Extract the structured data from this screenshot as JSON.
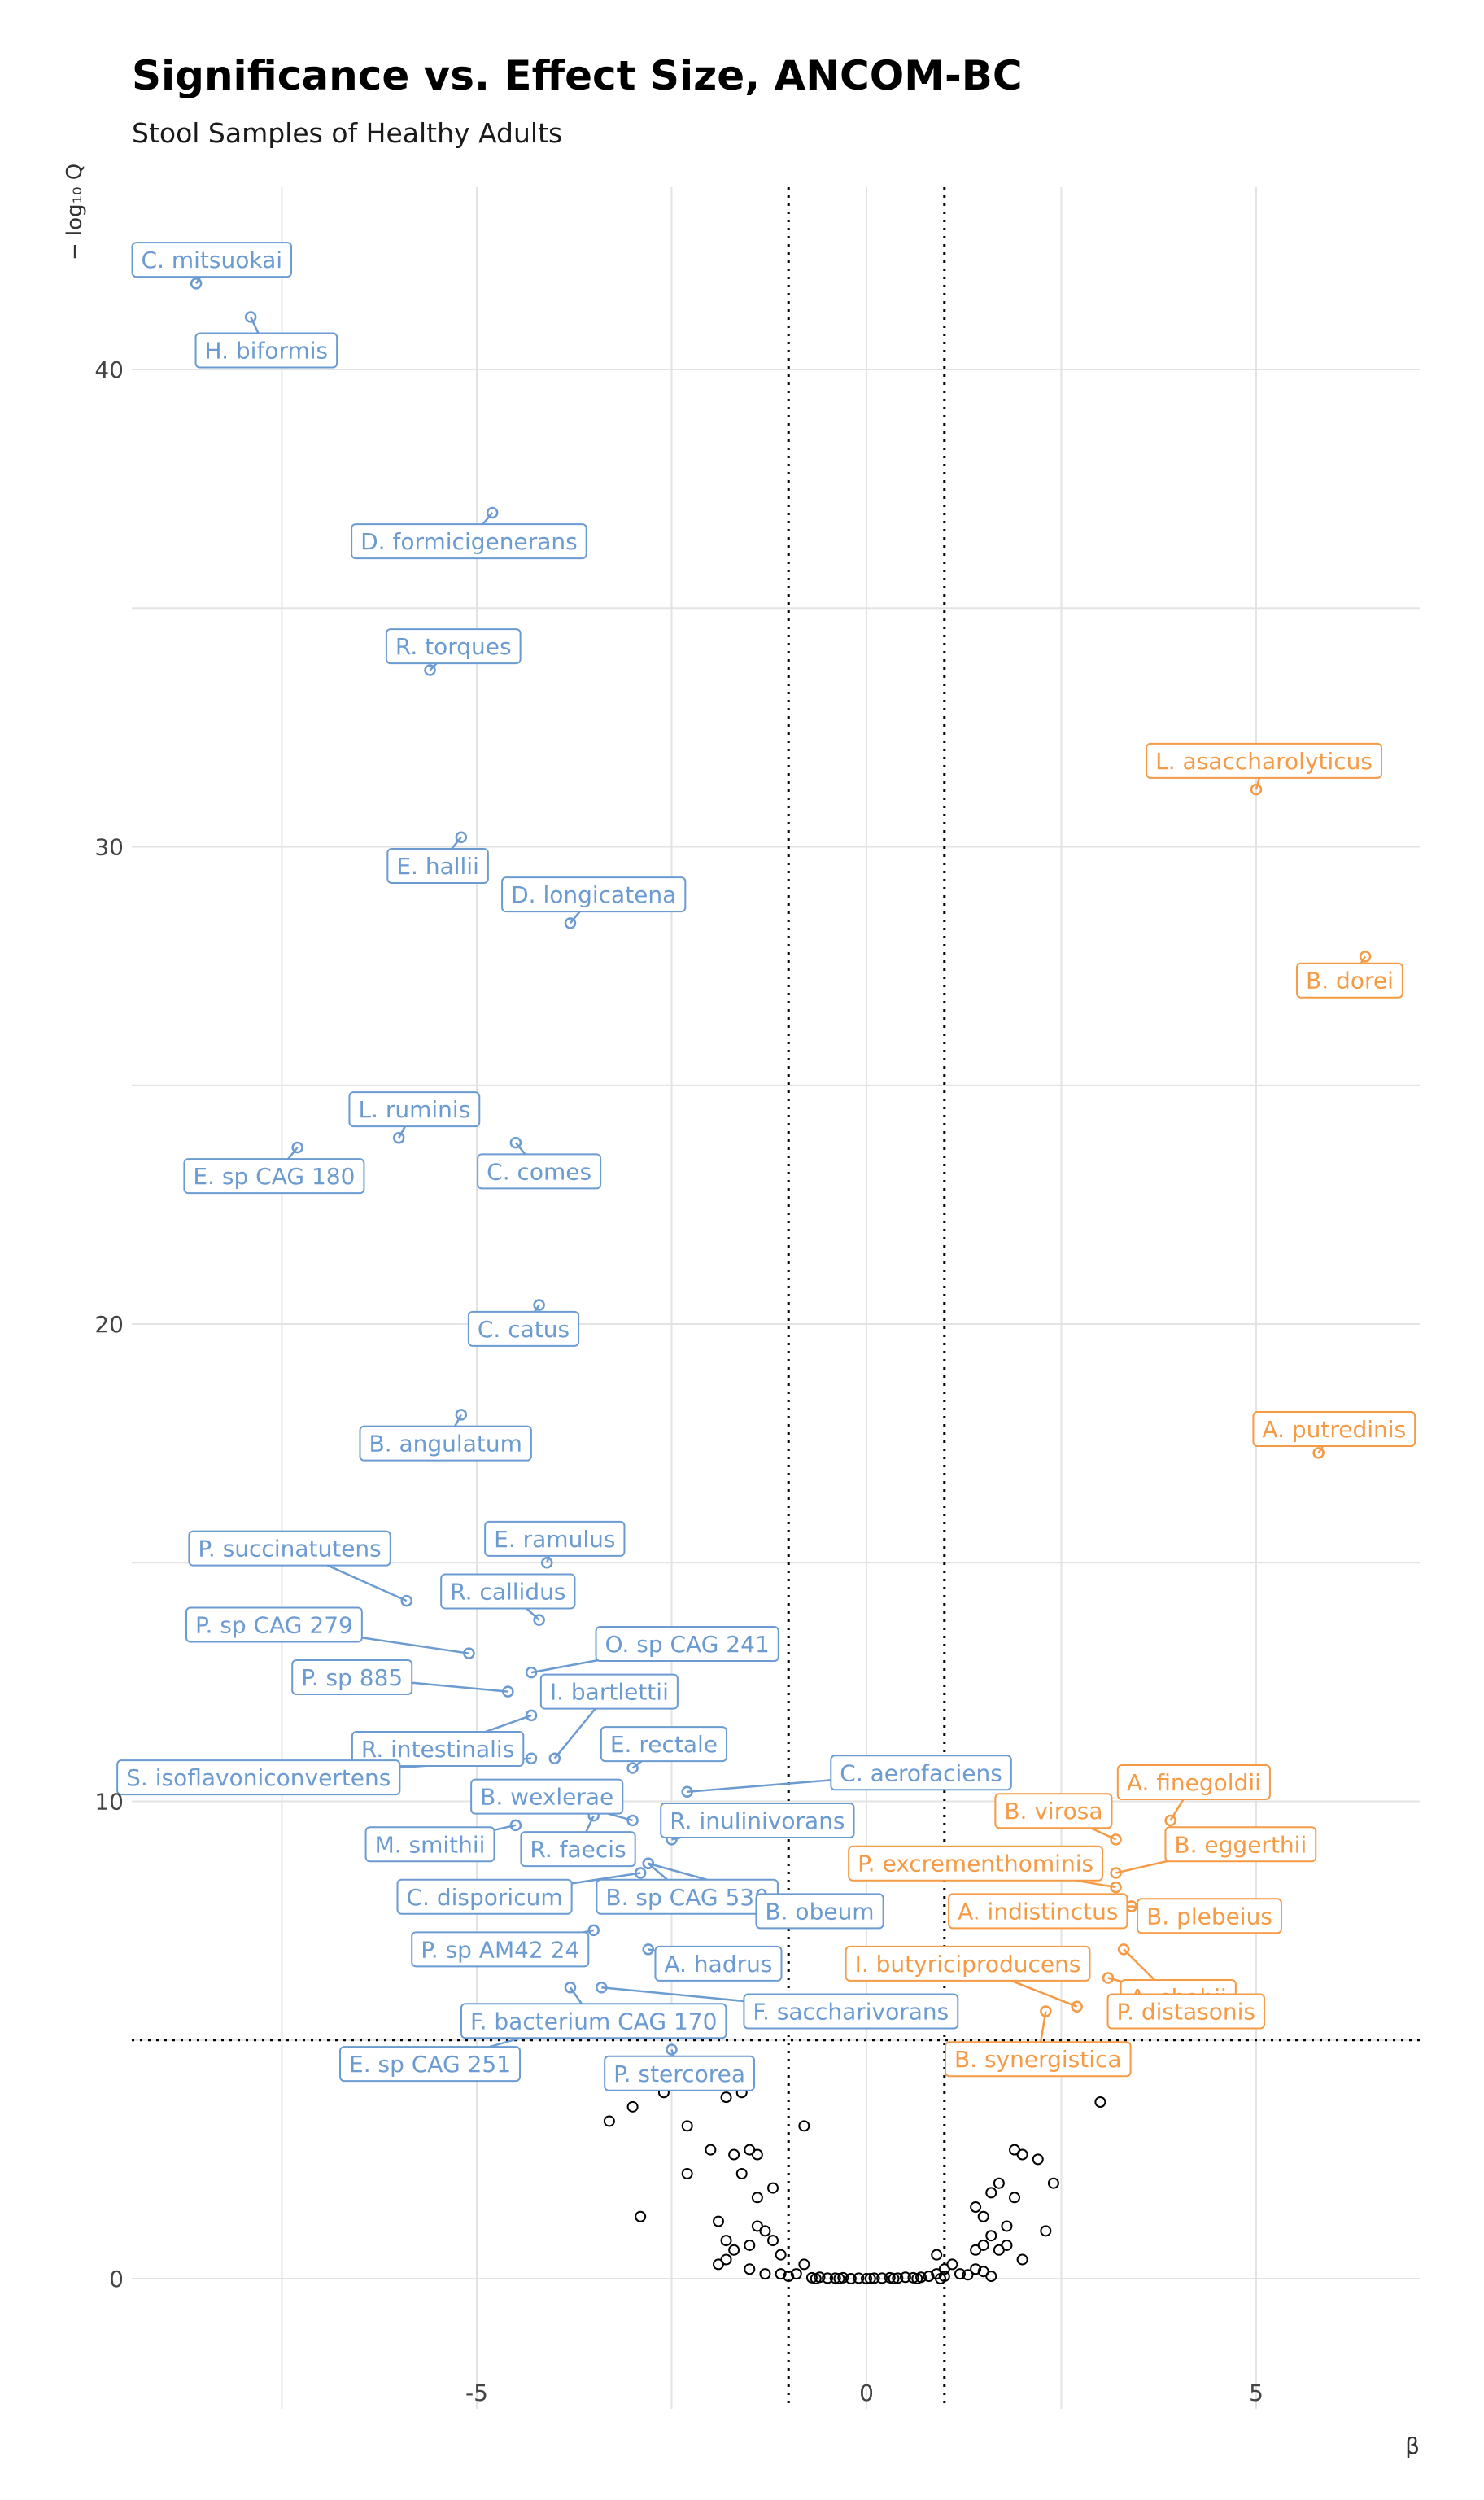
{
  "chart_data": {
    "type": "scatter",
    "title": "Significance vs. Effect Size, ANCOM-BC",
    "subtitle": "Stool Samples of Healthy Adults",
    "xlabel": "β",
    "ylabel": "− log₁₀ Q",
    "xlim": [
      -9.3,
      7.2
    ],
    "ylim": [
      -2.0,
      44.0
    ],
    "x_ticks": [
      -5,
      0,
      5
    ],
    "y_ticks": [
      0,
      10,
      20,
      30,
      40
    ],
    "grid": true,
    "legend": "none",
    "thresholds": {
      "x": [
        -1.0,
        1.0
      ],
      "y": 5.0
    },
    "colors": {
      "depleted": "#6b9bd1",
      "enriched": "#f59a45",
      "nonsignificant": "#000000",
      "grid": "#e3e3e3"
    },
    "labeled_points": [
      {
        "label": "C. mitsuokai",
        "x": -8.6,
        "y": 41.8,
        "group": "depleted",
        "lx": -8.4,
        "ly": 42.3
      },
      {
        "label": "H. biformis",
        "x": -7.9,
        "y": 41.1,
        "group": "depleted",
        "lx": -7.7,
        "ly": 40.4
      },
      {
        "label": "D. formicigenerans",
        "x": -4.8,
        "y": 37.0,
        "group": "depleted",
        "lx": -5.1,
        "ly": 36.4
      },
      {
        "label": "R. torques",
        "x": -5.6,
        "y": 33.7,
        "group": "depleted",
        "lx": -5.3,
        "ly": 34.2
      },
      {
        "label": "L. asaccharolyticus",
        "x": 5.0,
        "y": 31.2,
        "group": "enriched",
        "lx": 5.1,
        "ly": 31.8
      },
      {
        "label": "E. hallii",
        "x": -5.2,
        "y": 30.2,
        "group": "depleted",
        "lx": -5.5,
        "ly": 29.6
      },
      {
        "label": "D. longicatena",
        "x": -3.8,
        "y": 28.4,
        "group": "depleted",
        "lx": -3.5,
        "ly": 29.0
      },
      {
        "label": "B. dorei",
        "x": 6.4,
        "y": 27.7,
        "group": "enriched",
        "lx": 6.2,
        "ly": 27.2
      },
      {
        "label": "L. ruminis",
        "x": -6.0,
        "y": 23.9,
        "group": "depleted",
        "lx": -5.8,
        "ly": 24.5
      },
      {
        "label": "E. sp CAG 180",
        "x": -7.3,
        "y": 23.7,
        "group": "depleted",
        "lx": -7.6,
        "ly": 23.1
      },
      {
        "label": "C. comes",
        "x": -4.5,
        "y": 23.8,
        "group": "depleted",
        "lx": -4.2,
        "ly": 23.2
      },
      {
        "label": "C. catus",
        "x": -4.2,
        "y": 20.4,
        "group": "depleted",
        "lx": -4.4,
        "ly": 19.9
      },
      {
        "label": "A. putredinis",
        "x": 5.8,
        "y": 17.3,
        "group": "enriched",
        "lx": 6.0,
        "ly": 17.8
      },
      {
        "label": "B. angulatum",
        "x": -5.2,
        "y": 18.1,
        "group": "depleted",
        "lx": -5.4,
        "ly": 17.5
      },
      {
        "label": "P. succinatutens",
        "x": -5.9,
        "y": 14.2,
        "group": "depleted",
        "lx": -7.4,
        "ly": 15.3
      },
      {
        "label": "E. ramulus",
        "x": -4.1,
        "y": 15.0,
        "group": "depleted",
        "lx": -4.0,
        "ly": 15.5
      },
      {
        "label": "R. callidus",
        "x": -4.2,
        "y": 13.8,
        "group": "depleted",
        "lx": -4.6,
        "ly": 14.4
      },
      {
        "label": "P. sp CAG 279",
        "x": -5.1,
        "y": 13.1,
        "group": "depleted",
        "lx": -7.6,
        "ly": 13.7
      },
      {
        "label": "O. sp CAG 241",
        "x": -4.3,
        "y": 12.7,
        "group": "depleted",
        "lx": -2.3,
        "ly": 13.3
      },
      {
        "label": "P. sp 885",
        "x": -4.6,
        "y": 12.3,
        "group": "depleted",
        "lx": -6.6,
        "ly": 12.6
      },
      {
        "label": "I. bartlettii",
        "x": -4.0,
        "y": 10.9,
        "group": "depleted",
        "lx": -3.3,
        "ly": 12.3
      },
      {
        "label": "R. intestinalis",
        "x": -4.3,
        "y": 11.8,
        "group": "depleted",
        "lx": -5.5,
        "ly": 11.1
      },
      {
        "label": "S. isoflavoniconvertens",
        "x": -4.3,
        "y": 10.9,
        "group": "depleted",
        "lx": -7.8,
        "ly": 10.5
      },
      {
        "label": "E. rectale",
        "x": -3.0,
        "y": 10.7,
        "group": "depleted",
        "lx": -2.6,
        "ly": 11.2
      },
      {
        "label": "C. aerofaciens",
        "x": -2.3,
        "y": 10.2,
        "group": "depleted",
        "lx": 0.7,
        "ly": 10.6
      },
      {
        "label": "B. wexlerae",
        "x": -3.0,
        "y": 9.6,
        "group": "depleted",
        "lx": -4.1,
        "ly": 10.1
      },
      {
        "label": "R. inulinivorans",
        "x": -2.5,
        "y": 9.2,
        "group": "depleted",
        "lx": -1.4,
        "ly": 9.6
      },
      {
        "label": "M. smithii",
        "x": -4.5,
        "y": 9.5,
        "group": "depleted",
        "lx": -5.6,
        "ly": 9.1
      },
      {
        "label": "R. faecis",
        "x": -3.5,
        "y": 9.7,
        "group": "depleted",
        "lx": -3.7,
        "ly": 9.0
      },
      {
        "label": "C. disporicum",
        "x": -2.9,
        "y": 8.5,
        "group": "depleted",
        "lx": -4.9,
        "ly": 8.0
      },
      {
        "label": "B. sp CAG 530",
        "x": -2.8,
        "y": 8.7,
        "group": "depleted",
        "lx": -2.3,
        "ly": 8.0
      },
      {
        "label": "B. obeum",
        "x": -2.8,
        "y": 8.7,
        "group": "depleted",
        "lx": -0.6,
        "ly": 7.7
      },
      {
        "label": "P. sp AM42 24",
        "x": -3.5,
        "y": 7.3,
        "group": "depleted",
        "lx": -4.7,
        "ly": 6.9
      },
      {
        "label": "A. hadrus",
        "x": -2.8,
        "y": 6.9,
        "group": "depleted",
        "lx": -1.9,
        "ly": 6.6
      },
      {
        "label": "F. bacterium CAG 170",
        "x": -3.8,
        "y": 6.1,
        "group": "depleted",
        "lx": -3.5,
        "ly": 5.4
      },
      {
        "label": "F. saccharivorans",
        "x": -3.4,
        "y": 6.1,
        "group": "depleted",
        "lx": -0.2,
        "ly": 5.6
      },
      {
        "label": "E. sp CAG 251",
        "x": -4.1,
        "y": 5.2,
        "group": "depleted",
        "lx": -5.6,
        "ly": 4.5
      },
      {
        "label": "P. stercorea",
        "x": -2.5,
        "y": 4.8,
        "group": "depleted",
        "lx": -2.4,
        "ly": 4.3
      },
      {
        "label": "A. finegoldii",
        "x": 3.9,
        "y": 9.6,
        "group": "enriched",
        "lx": 4.2,
        "ly": 10.4
      },
      {
        "label": "B. virosa",
        "x": 3.2,
        "y": 9.2,
        "group": "enriched",
        "lx": 2.4,
        "ly": 9.8
      },
      {
        "label": "B. eggerthii",
        "x": 3.2,
        "y": 8.5,
        "group": "enriched",
        "lx": 4.8,
        "ly": 9.1
      },
      {
        "label": "P. excrementhominis",
        "x": 3.2,
        "y": 8.2,
        "group": "enriched",
        "lx": 1.4,
        "ly": 8.7
      },
      {
        "label": "A. indistinctus",
        "x": 3.4,
        "y": 7.8,
        "group": "enriched",
        "lx": 2.2,
        "ly": 7.7
      },
      {
        "label": "B. plebeius",
        "x": 3.4,
        "y": 7.8,
        "group": "enriched",
        "lx": 4.4,
        "ly": 7.6
      },
      {
        "label": "I. butyriciproducens",
        "x": 2.7,
        "y": 5.7,
        "group": "enriched",
        "lx": 1.3,
        "ly": 6.6
      },
      {
        "label": "A. shahii",
        "x": 3.1,
        "y": 6.3,
        "group": "enriched",
        "lx": 4.0,
        "ly": 5.9
      },
      {
        "label": "P. distasonis",
        "x": 3.3,
        "y": 6.9,
        "group": "enriched",
        "lx": 4.1,
        "ly": 5.6
      },
      {
        "label": "B. synergistica",
        "x": 2.3,
        "y": 5.6,
        "group": "enriched",
        "lx": 2.2,
        "ly": 4.6
      }
    ],
    "unlabeled_points": [
      [
        -3.3,
        3.3
      ],
      [
        -3.0,
        3.6
      ],
      [
        -2.6,
        3.9
      ],
      [
        -2.3,
        3.2
      ],
      [
        -1.6,
        3.9
      ],
      [
        -1.8,
        3.8
      ],
      [
        -0.8,
        3.2
      ],
      [
        -2.0,
        2.7
      ],
      [
        -1.7,
        2.6
      ],
      [
        -1.5,
        2.7
      ],
      [
        -1.4,
        2.6
      ],
      [
        -1.6,
        2.2
      ],
      [
        -1.4,
        1.7
      ],
      [
        -2.3,
        2.2
      ],
      [
        -1.2,
        1.9
      ],
      [
        -2.9,
        1.3
      ],
      [
        -1.9,
        1.2
      ],
      [
        -1.8,
        0.8
      ],
      [
        -1.7,
        0.6
      ],
      [
        -1.5,
        0.7
      ],
      [
        -1.3,
        1.0
      ],
      [
        -1.2,
        0.8
      ],
      [
        -1.4,
        1.1
      ],
      [
        -1.8,
        0.4
      ],
      [
        -1.9,
        0.3
      ],
      [
        -1.1,
        0.5
      ],
      [
        1.4,
        1.5
      ],
      [
        1.6,
        1.8
      ],
      [
        1.7,
        2.0
      ],
      [
        1.9,
        1.7
      ],
      [
        1.5,
        1.3
      ],
      [
        1.8,
        1.1
      ],
      [
        2.0,
        2.6
      ],
      [
        2.2,
        2.5
      ],
      [
        2.4,
        2.0
      ],
      [
        1.9,
        2.7
      ],
      [
        2.3,
        1.0
      ],
      [
        3.0,
        3.7
      ],
      [
        1.5,
        0.7
      ],
      [
        1.7,
        0.6
      ],
      [
        1.4,
        0.2
      ],
      [
        1.8,
        0.7
      ],
      [
        0.9,
        0.5
      ],
      [
        1.0,
        0.2
      ],
      [
        1.6,
        0.9
      ],
      [
        1.4,
        0.6
      ],
      [
        2.0,
        0.4
      ],
      [
        -1.0,
        0.05
      ],
      [
        -0.9,
        0.1
      ],
      [
        -0.8,
        0.3
      ],
      [
        -1.1,
        0.1
      ],
      [
        -0.7,
        0.02
      ],
      [
        -0.6,
        0.03
      ],
      [
        -0.5,
        0.01
      ],
      [
        -0.4,
        0.01
      ],
      [
        -0.3,
        0.02
      ],
      [
        -0.2,
        0.0
      ],
      [
        -0.1,
        0.01
      ],
      [
        0.0,
        0.0
      ],
      [
        0.1,
        0.01
      ],
      [
        0.2,
        0.01
      ],
      [
        0.3,
        0.02
      ],
      [
        0.4,
        0.01
      ],
      [
        0.5,
        0.03
      ],
      [
        0.6,
        0.02
      ],
      [
        0.7,
        0.03
      ],
      [
        0.8,
        0.05
      ],
      [
        0.9,
        0.1
      ],
      [
        1.0,
        0.05
      ],
      [
        1.2,
        0.1
      ],
      [
        1.1,
        0.3
      ],
      [
        1.3,
        0.08
      ],
      [
        -1.5,
        0.2
      ],
      [
        -1.3,
        0.1
      ],
      [
        1.5,
        0.15
      ],
      [
        1.6,
        0.05
      ],
      [
        -0.65,
        0.0
      ],
      [
        -0.35,
        0.0
      ],
      [
        0.05,
        0.0
      ],
      [
        0.35,
        0.0
      ],
      [
        0.65,
        0.0
      ],
      [
        0.95,
        0.0
      ]
    ]
  }
}
